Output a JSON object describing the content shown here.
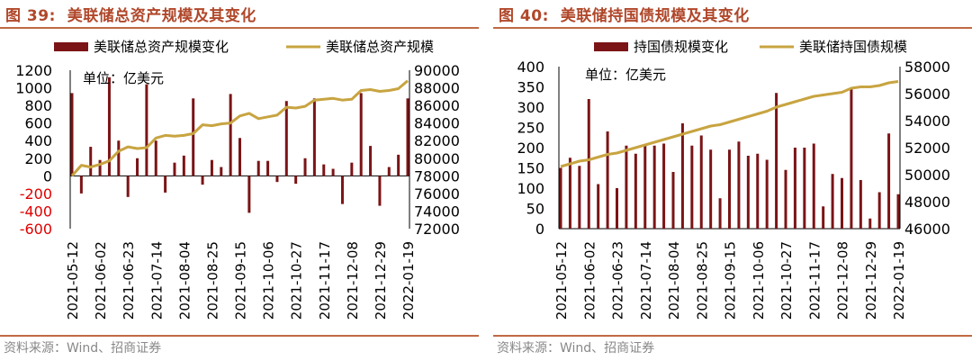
{
  "charts": [
    {
      "fig_label": "图 39:",
      "title": "美联储总资产规模及其变化",
      "source": "资料来源：Wind、招商证券",
      "legend": {
        "bar_label": "美联储总资产规模变化",
        "line_label": "美联储总资产规模"
      },
      "unit": "单位：亿美元",
      "colors": {
        "bar": "#7b1416",
        "line": "#c8a441",
        "negative_tick": "#e00000",
        "title": "#b0472a"
      }
    },
    {
      "fig_label": "图 40:",
      "title": "美联储持国债规模及其变化",
      "source": "资料来源：Wind、招商证券",
      "legend": {
        "bar_label": "持国债规模变化",
        "line_label": "美联储持国债规模"
      },
      "unit": "单位：亿美元",
      "colors": {
        "bar": "#7b1416",
        "line": "#c8a441",
        "negative_tick": "#e00000",
        "title": "#b0472a"
      }
    }
  ],
  "chart_data": [
    {
      "type": "bar+line",
      "title": "美联储总资产规模及其变化",
      "x_tick_labels": [
        "2021-05-12",
        "2021-06-02",
        "2021-06-23",
        "2021-07-14",
        "2021-08-04",
        "2021-08-25",
        "2021-09-15",
        "2021-10-06",
        "2021-10-27",
        "2021-11-17",
        "2021-12-08",
        "2021-12-29",
        "2022-01-19"
      ],
      "n_points": 37,
      "series": [
        {
          "name": "美联储总资产规模变化",
          "kind": "bar",
          "axis": "left",
          "values": [
            940,
            -200,
            330,
            180,
            1120,
            400,
            -240,
            200,
            1040,
            400,
            -190,
            150,
            230,
            880,
            -100,
            180,
            100,
            930,
            430,
            -420,
            170,
            170,
            -70,
            850,
            -90,
            200,
            880,
            130,
            80,
            -320,
            150,
            940,
            340,
            -340,
            100,
            240,
            880
          ]
        },
        {
          "name": "美联储总资产规模",
          "kind": "line",
          "axis": "right",
          "values": [
            78000,
            79200,
            79000,
            79300,
            79700,
            80800,
            81300,
            81100,
            81200,
            82300,
            82600,
            82500,
            82600,
            82800,
            83800,
            83700,
            83900,
            84000,
            84800,
            85100,
            84500,
            84700,
            84900,
            85800,
            85700,
            85900,
            86600,
            86700,
            86800,
            86600,
            86700,
            87700,
            87800,
            87600,
            87700,
            87900,
            88800
          ]
        }
      ],
      "y_left": {
        "min": -600,
        "max": 1200,
        "ticks": [
          1200,
          1000,
          800,
          600,
          400,
          200,
          0,
          -200,
          -400,
          -600
        ]
      },
      "y_right": {
        "min": 72000,
        "max": 90000,
        "ticks": [
          90000,
          88000,
          86000,
          84000,
          82000,
          80000,
          78000,
          76000,
          74000,
          72000
        ]
      }
    },
    {
      "type": "bar+line",
      "title": "美联储持国债规模及其变化",
      "x_tick_labels": [
        "2021-05-12",
        "2021-06-02",
        "2021-06-23",
        "2021-07-14",
        "2021-08-04",
        "2021-08-25",
        "2021-09-15",
        "2021-10-06",
        "2021-10-27",
        "2021-11-17",
        "2021-12-08",
        "2021-12-29",
        "2022-01-19"
      ],
      "n_points": 37,
      "series": [
        {
          "name": "持国债规模变化",
          "kind": "bar",
          "axis": "left",
          "values": [
            150,
            175,
            155,
            320,
            110,
            240,
            100,
            205,
            185,
            205,
            205,
            210,
            140,
            260,
            205,
            230,
            195,
            75,
            195,
            215,
            180,
            185,
            170,
            335,
            145,
            200,
            200,
            210,
            55,
            135,
            125,
            345,
            120,
            25,
            90,
            235,
            85
          ]
        },
        {
          "name": "美联储持国债规模",
          "kind": "line",
          "axis": "right",
          "values": [
            50600,
            50800,
            51000,
            51100,
            51300,
            51500,
            51600,
            51800,
            52000,
            52200,
            52400,
            52600,
            52800,
            53000,
            53200,
            53400,
            53600,
            53700,
            53900,
            54100,
            54300,
            54500,
            54700,
            55000,
            55200,
            55400,
            55600,
            55800,
            55900,
            56000,
            56100,
            56400,
            56500,
            56500,
            56600,
            56800,
            56900
          ]
        }
      ],
      "y_left": {
        "min": 0,
        "max": 400,
        "ticks": [
          400,
          350,
          300,
          250,
          200,
          150,
          100,
          50,
          0
        ]
      },
      "y_right": {
        "min": 46000,
        "max": 58000,
        "ticks": [
          58000,
          56000,
          54000,
          52000,
          50000,
          48000,
          46000
        ]
      }
    }
  ]
}
